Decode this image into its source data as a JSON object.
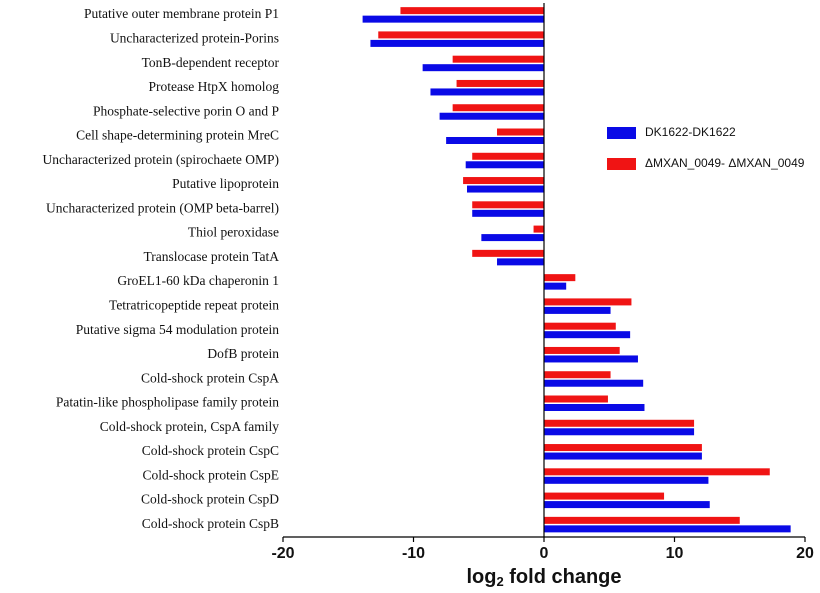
{
  "chart_data": {
    "type": "barh",
    "xlabel": {
      "main": "log",
      "sub": "2",
      "rest": " fold change"
    },
    "categories": [
      "Putative outer membrane protein P1",
      "Uncharacterized protein-Porins",
      "TonB-dependent receptor",
      "Protease HtpX homolog",
      "Phosphate-selective porin O and P",
      "Cell shape-determining protein MreC",
      "Uncharacterized protein (spirochaete OMP)",
      "Putative lipoprotein",
      "Uncharacterized protein (OMP beta-barrel)",
      "Thiol peroxidase",
      "Translocase protein TatA",
      "GroEL1-60 kDa chaperonin 1",
      "Tetratricopeptide repeat protein",
      "Putative sigma 54 modulation protein",
      "DofB protein",
      "Cold-shock protein CspA",
      "Patatin-like phospholipase family protein",
      "Cold-shock protein, CspA family",
      "Cold-shock protein CspC",
      "Cold-shock protein CspE",
      "Cold-shock protein CspD",
      "Cold-shock protein CspB"
    ],
    "series": [
      {
        "name": "DK1622-DK1622",
        "color": "#0a0ae6",
        "values": [
          -13.9,
          -13.3,
          -9.3,
          -8.7,
          -8.0,
          -7.5,
          -6.0,
          -5.9,
          -5.5,
          -4.8,
          -3.6,
          1.7,
          5.1,
          6.6,
          7.2,
          7.6,
          7.7,
          11.5,
          12.1,
          12.6,
          12.7,
          18.9
        ]
      },
      {
        "name": "ΔMXAN_0049- ΔMXAN_0049",
        "color": "#f01414",
        "values": [
          -11.0,
          -12.7,
          -7.0,
          -6.7,
          -7.0,
          -3.6,
          -5.5,
          -6.2,
          -5.5,
          -0.8,
          -5.5,
          2.4,
          6.7,
          5.5,
          5.8,
          5.1,
          4.9,
          11.5,
          12.1,
          17.3,
          9.2,
          15.0
        ]
      }
    ],
    "xlim": [
      -20,
      20
    ],
    "xticks": [
      -20,
      -10,
      0,
      10,
      20
    ]
  }
}
